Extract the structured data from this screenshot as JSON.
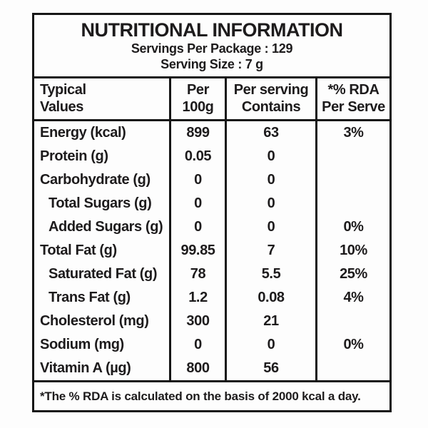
{
  "header": {
    "title": "NUTRITIONAL INFORMATION",
    "servings_per_package": "Servings Per Package : 129",
    "serving_size": "Serving Size : 7 g"
  },
  "table": {
    "columns": [
      {
        "line1": "Typical",
        "line2": "Values"
      },
      {
        "line1": "Per",
        "line2": "100g"
      },
      {
        "line1": "Per serving",
        "line2": "Contains"
      },
      {
        "line1": "*% RDA",
        "line2": "Per Serve"
      }
    ],
    "rows": [
      {
        "label": "Energy (kcal)",
        "indent": false,
        "per_100g": "899",
        "per_serving": "63",
        "rda": "3%"
      },
      {
        "label": "Protein (g)",
        "indent": false,
        "per_100g": "0.05",
        "per_serving": "0",
        "rda": ""
      },
      {
        "label": "Carbohydrate (g)",
        "indent": false,
        "per_100g": "0",
        "per_serving": "0",
        "rda": ""
      },
      {
        "label": "Total Sugars (g)",
        "indent": true,
        "per_100g": "0",
        "per_serving": "0",
        "rda": ""
      },
      {
        "label": "Added Sugars (g)",
        "indent": true,
        "per_100g": "0",
        "per_serving": "0",
        "rda": "0%"
      },
      {
        "label": "Total Fat (g)",
        "indent": false,
        "per_100g": "99.85",
        "per_serving": "7",
        "rda": "10%"
      },
      {
        "label": "Saturated Fat (g)",
        "indent": true,
        "per_100g": "78",
        "per_serving": "5.5",
        "rda": "25%"
      },
      {
        "label": "Trans Fat (g)",
        "indent": true,
        "per_100g": "1.2",
        "per_serving": "0.08",
        "rda": "4%"
      },
      {
        "label": "Cholesterol (mg)",
        "indent": false,
        "per_100g": "300",
        "per_serving": "21",
        "rda": ""
      },
      {
        "label": "Sodium (mg)",
        "indent": false,
        "per_100g": "0",
        "per_serving": "0",
        "rda": "0%"
      },
      {
        "label": "Vitamin A (µg)",
        "indent": false,
        "per_100g": "800",
        "per_serving": "56",
        "rda": ""
      }
    ],
    "footnote": "*The % RDA is calculated on the basis of 2000 kcal a day."
  },
  "colors": {
    "text": "#1d1b1c",
    "border": "#161616",
    "background": "#fdfdfd"
  }
}
